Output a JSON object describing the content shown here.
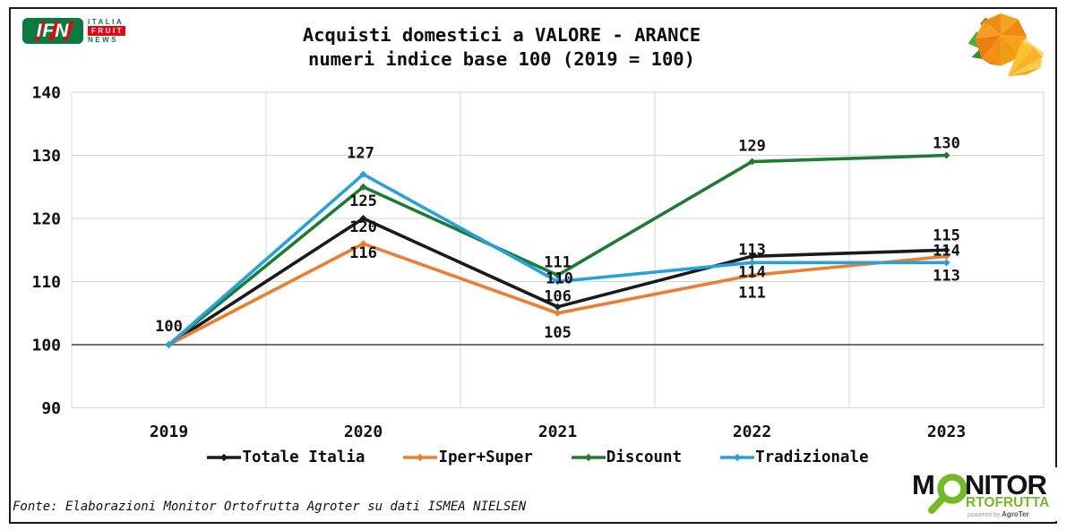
{
  "header": {
    "ifn_logo": {
      "ifn": "IFN",
      "italia": "ITALIA",
      "fruit": "FRUIT",
      "news": "NEWS"
    },
    "title_line1": "Acquisti domestici a VALORE - ARANCE",
    "title_line2": "numeri indice base 100 (2019 = 100)"
  },
  "chart_data": {
    "type": "line",
    "categories": [
      "2019",
      "2020",
      "2021",
      "2022",
      "2023"
    ],
    "series": [
      {
        "name": "Totale Italia",
        "color": "#1a1a1a",
        "values": [
          100,
          120,
          106,
          114,
          115
        ]
      },
      {
        "name": "Iper+Super",
        "color": "#ED7D31",
        "values": [
          100,
          116,
          105,
          111,
          114
        ]
      },
      {
        "name": "Discount",
        "color": "#1E7B33",
        "values": [
          100,
          125,
          111,
          129,
          130
        ]
      },
      {
        "name": "Tradizionale",
        "color": "#29A0DA",
        "values": [
          100,
          127,
          110,
          113,
          113
        ]
      }
    ],
    "ylim": [
      90,
      140
    ],
    "yticks": [
      90,
      100,
      110,
      120,
      130,
      140
    ],
    "baseline": 100,
    "grid": true,
    "legend_position": "bottom",
    "grid_color": "#d6d6d6",
    "baseline_color": "#404040"
  },
  "footer": {
    "source": "Fonte: Elaborazioni Monitor Ortofrutta Agroter su dati ISMEA NIELSEN"
  },
  "monitor_logo": {
    "m": "M",
    "nitor": "NITOR",
    "ortofrutta": "RTOFRUTTA",
    "powered_by": "powered by",
    "brand": "AgroTer",
    "green": "#76b82a"
  }
}
